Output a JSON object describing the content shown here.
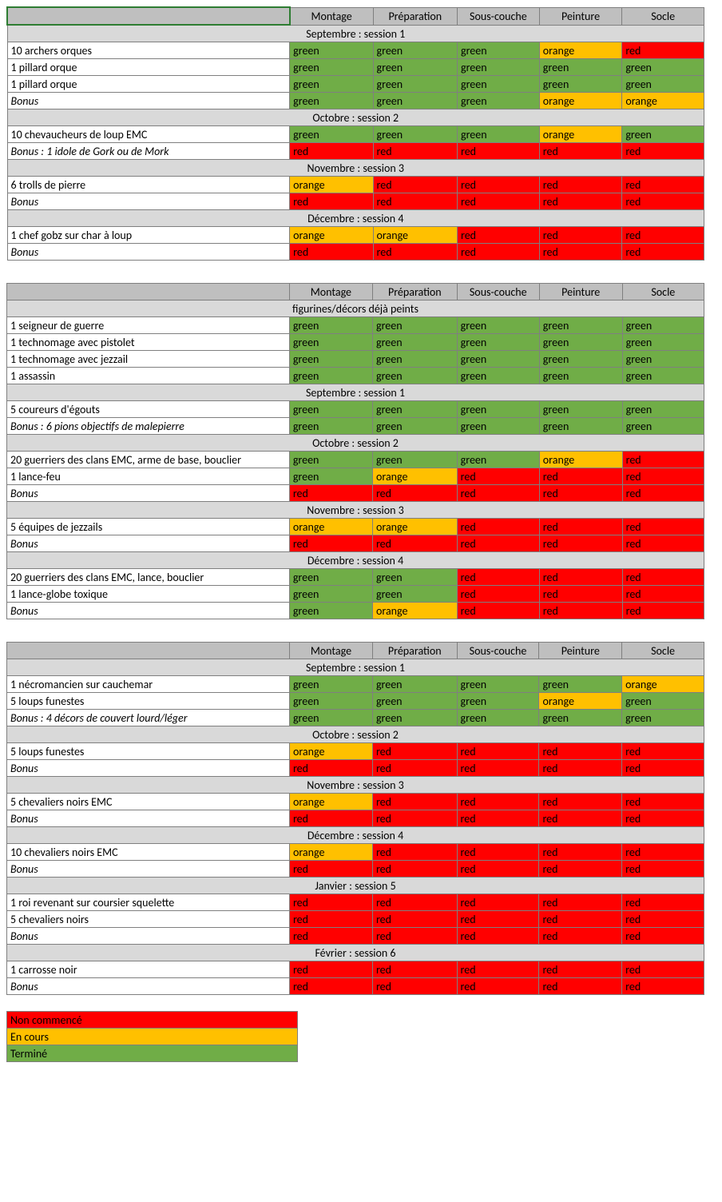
{
  "colors": {
    "green": "#70ad47",
    "orange": "#ffc000",
    "red": "#ff0000",
    "hdr": "#bfbfbf",
    "section": "#d9d9d9",
    "border": "#7f7f7f"
  },
  "columns": [
    "Montage",
    "Préparation",
    "Sous-couche",
    "Peinture",
    "Socle"
  ],
  "tables": [
    {
      "sections": [
        {
          "title": "Septembre : session 1",
          "rows": [
            {
              "label": "10 archers orques",
              "cells": [
                "green",
                "green",
                "green",
                "orange",
                "red"
              ]
            },
            {
              "label": "1 pillard orque",
              "cells": [
                "green",
                "green",
                "green",
                "green",
                "green"
              ]
            },
            {
              "label": "1 pillard orque",
              "cells": [
                "green",
                "green",
                "green",
                "green",
                "green"
              ]
            },
            {
              "label": "Bonus",
              "italic": true,
              "cells": [
                "green",
                "green",
                "green",
                "orange",
                "orange"
              ]
            }
          ]
        },
        {
          "title": "Octobre : session 2",
          "rows": [
            {
              "label": "10 chevaucheurs de loup EMC",
              "cells": [
                "green",
                "green",
                "green",
                "orange",
                "green"
              ]
            },
            {
              "label": "Bonus : 1 idole de Gork ou de Mork",
              "italic": true,
              "cells": [
                "red",
                "red",
                "red",
                "red",
                "red"
              ]
            }
          ]
        },
        {
          "title": "Novembre : session 3",
          "rows": [
            {
              "label": "6 trolls de pierre",
              "cells": [
                "orange",
                "red",
                "red",
                "red",
                "red"
              ]
            },
            {
              "label": "Bonus",
              "italic": true,
              "cells": [
                "red",
                "red",
                "red",
                "red",
                "red"
              ]
            }
          ]
        },
        {
          "title": "Décembre : session 4",
          "rows": [
            {
              "label": "1 chef gobz sur char à loup",
              "cells": [
                "orange",
                "orange",
                "red",
                "red",
                "red"
              ]
            },
            {
              "label": "Bonus",
              "italic": true,
              "cells": [
                "red",
                "red",
                "red",
                "red",
                "red"
              ]
            }
          ]
        }
      ]
    },
    {
      "sections": [
        {
          "title": "figurines/décors déjà peints",
          "rows": [
            {
              "label": "1 seigneur de guerre",
              "cells": [
                "green",
                "green",
                "green",
                "green",
                "green"
              ]
            },
            {
              "label": "1 technomage avec pistolet",
              "cells": [
                "green",
                "green",
                "green",
                "green",
                "green"
              ]
            },
            {
              "label": "1 technomage avec jezzail",
              "cells": [
                "green",
                "green",
                "green",
                "green",
                "green"
              ]
            },
            {
              "label": "1 assassin",
              "cells": [
                "green",
                "green",
                "green",
                "green",
                "green"
              ]
            }
          ]
        },
        {
          "title": "Septembre : session 1",
          "rows": [
            {
              "label": "5 coureurs d'égouts",
              "cells": [
                "green",
                "green",
                "green",
                "green",
                "green"
              ]
            },
            {
              "label": "Bonus : 6 pions objectifs de malepierre",
              "italic": true,
              "cells": [
                "green",
                "green",
                "green",
                "green",
                "green"
              ]
            }
          ]
        },
        {
          "title": "Octobre : session 2",
          "rows": [
            {
              "label": "20 guerriers des clans EMC, arme de base, bouclier",
              "cells": [
                "green",
                "green",
                "green",
                "orange",
                "red"
              ]
            },
            {
              "label": "1 lance-feu",
              "cells": [
                "green",
                "orange",
                "red",
                "red",
                "red"
              ]
            },
            {
              "label": "Bonus",
              "italic": true,
              "cells": [
                "red",
                "red",
                "red",
                "red",
                "red"
              ]
            }
          ]
        },
        {
          "title": "Novembre : session 3",
          "rows": [
            {
              "label": "5 équipes de jezzails",
              "cells": [
                "orange",
                "orange",
                "red",
                "red",
                "red"
              ]
            },
            {
              "label": "Bonus",
              "italic": true,
              "cells": [
                "red",
                "red",
                "red",
                "red",
                "red"
              ]
            }
          ]
        },
        {
          "title": "Décembre : session 4",
          "rows": [
            {
              "label": "20 guerriers des clans EMC, lance, bouclier",
              "cells": [
                "green",
                "green",
                "red",
                "red",
                "red"
              ]
            },
            {
              "label": "1 lance-globe toxique",
              "cells": [
                "green",
                "green",
                "red",
                "red",
                "red"
              ]
            },
            {
              "label": "Bonus",
              "italic": true,
              "cells": [
                "green",
                "orange",
                "red",
                "red",
                "red"
              ]
            }
          ]
        }
      ]
    },
    {
      "sections": [
        {
          "title": "Septembre : session 1",
          "rows": [
            {
              "label": "1 nécromancien sur cauchemar",
              "cells": [
                "green",
                "green",
                "green",
                "green",
                "orange"
              ]
            },
            {
              "label": "5 loups funestes",
              "cells": [
                "green",
                "green",
                "green",
                "orange",
                "green"
              ]
            },
            {
              "label": "Bonus : 4 décors de couvert lourd/léger",
              "italic": true,
              "cells": [
                "green",
                "green",
                "green",
                "green",
                "green"
              ]
            }
          ]
        },
        {
          "title": "Octobre : session 2",
          "rows": [
            {
              "label": "5 loups funestes",
              "cells": [
                "orange",
                "red",
                "red",
                "red",
                "red"
              ]
            },
            {
              "label": "Bonus",
              "italic": true,
              "cells": [
                "red",
                "red",
                "red",
                "red",
                "red"
              ]
            }
          ]
        },
        {
          "title": "Novembre : session 3",
          "rows": [
            {
              "label": "5 chevaliers noirs EMC",
              "cells": [
                "orange",
                "red",
                "red",
                "red",
                "red"
              ]
            },
            {
              "label": "Bonus",
              "italic": true,
              "cells": [
                "red",
                "red",
                "red",
                "red",
                "red"
              ]
            }
          ]
        },
        {
          "title": "Décembre : session 4",
          "rows": [
            {
              "label": "10 chevaliers noirs EMC",
              "cells": [
                "orange",
                "red",
                "red",
                "red",
                "red"
              ]
            },
            {
              "label": "Bonus",
              "italic": true,
              "cells": [
                "red",
                "red",
                "red",
                "red",
                "red"
              ]
            }
          ]
        },
        {
          "title": "Janvier : session 5",
          "rows": [
            {
              "label": "1 roi revenant sur coursier squelette",
              "cells": [
                "red",
                "red",
                "red",
                "red",
                "red"
              ]
            },
            {
              "label": "5 chevaliers noirs",
              "cells": [
                "red",
                "red",
                "red",
                "red",
                "red"
              ]
            },
            {
              "label": "Bonus",
              "italic": true,
              "cells": [
                "red",
                "red",
                "red",
                "red",
                "red"
              ]
            }
          ]
        },
        {
          "title": "Février : session 6",
          "rows": [
            {
              "label": "1 carrosse noir",
              "cells": [
                "red",
                "red",
                "red",
                "red",
                "red"
              ]
            },
            {
              "label": "Bonus",
              "italic": true,
              "cells": [
                "red",
                "red",
                "red",
                "red",
                "red"
              ]
            }
          ]
        }
      ]
    }
  ],
  "legend": [
    {
      "label": "Non commencé",
      "color": "red"
    },
    {
      "label": "En cours",
      "color": "orange"
    },
    {
      "label": "Terminé",
      "color": "green"
    }
  ]
}
